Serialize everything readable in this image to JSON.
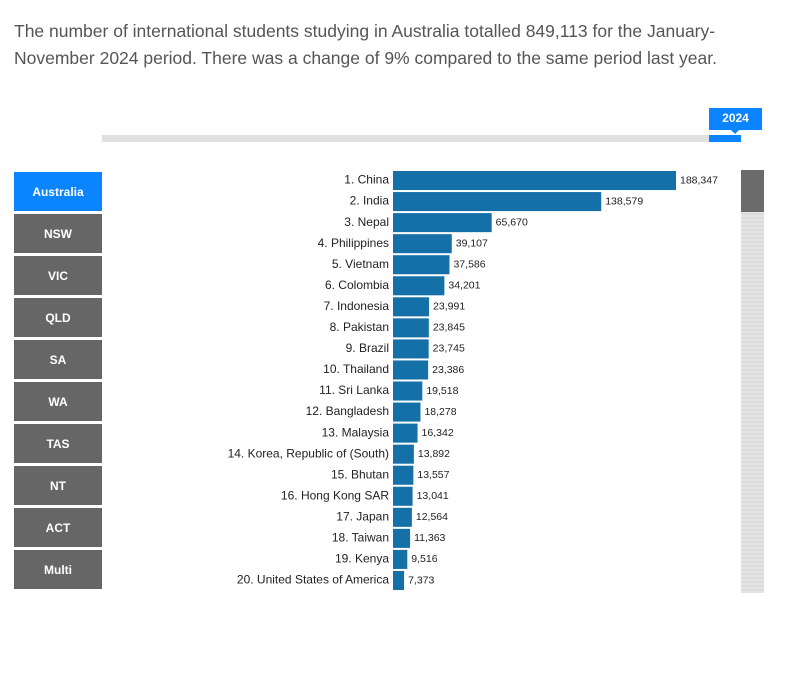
{
  "intro": "The number of international students studying in Australia totalled 849,113 for the January-November 2024 period. There was a change of 9% compared to the same period last year.",
  "slider_label": "2024",
  "buttons": [
    "Australia",
    "NSW",
    "VIC",
    "QLD",
    "SA",
    "WA",
    "TAS",
    "NT",
    "ACT",
    "Multi"
  ],
  "chart_data": {
    "type": "bar",
    "orientation": "horizontal",
    "color": "#1670a8",
    "categories": [
      "1. China",
      "2. India",
      "3. Nepal",
      "4. Philippines",
      "5. Vietnam",
      "6. Colombia",
      "7. Indonesia",
      "8. Pakistan",
      "9. Brazil",
      "10. Thailand",
      "11. Sri Lanka",
      "12. Bangladesh",
      "13. Malaysia",
      "14. Korea, Republic of (South)",
      "15. Bhutan",
      "16. Hong Kong SAR",
      "17. Japan",
      "18. Taiwan",
      "19. Kenya",
      "20. United States of America"
    ],
    "values": [
      188347,
      138579,
      65670,
      39107,
      37586,
      34201,
      23991,
      23845,
      23745,
      23386,
      19518,
      18278,
      16342,
      13892,
      13557,
      13041,
      12564,
      11363,
      9516,
      7373
    ],
    "value_labels": [
      "188,347",
      "138,579",
      "65,670",
      "39,107",
      "37,586",
      "34,201",
      "23,991",
      "23,845",
      "23,745",
      "23,386",
      "19,518",
      "18,278",
      "16,342",
      "13,892",
      "13,557",
      "13,041",
      "12,564",
      "11,363",
      "9,516",
      "7,373"
    ]
  }
}
